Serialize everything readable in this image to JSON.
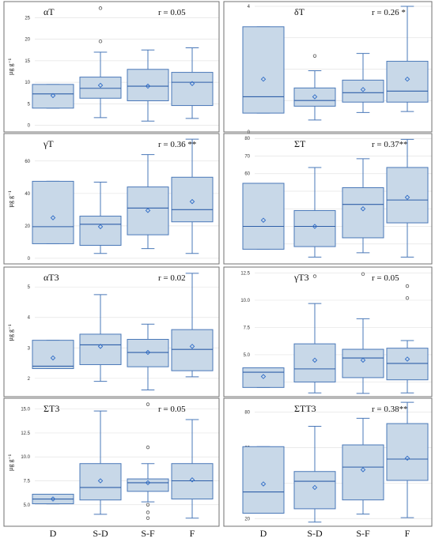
{
  "categories": [
    "D",
    "S-D",
    "S-F",
    "F"
  ],
  "y_unit_label": "µg g⁻¹",
  "colors": {
    "box_fill": "#c8d8e8",
    "box_stroke": "#4a78b8",
    "median": "#2f5fa8",
    "mean_marker": "#2e6bc6",
    "grid": "#e4e4e4",
    "frame": "#707070",
    "outlier": "#555555"
  },
  "chart_data": [
    {
      "type": "box",
      "title": "αT",
      "annotation": "r = 0.05",
      "ylabel": "µg g⁻¹",
      "ylim": [
        -0.8,
        28
      ],
      "yticks": [
        0,
        5,
        10,
        15,
        20,
        25
      ],
      "series": [
        {
          "category": "D",
          "whisker_low": 4.0,
          "q1": 4.0,
          "median": 7.3,
          "q3": 9.5,
          "whisker_high": 9.5,
          "mean": 6.9,
          "outliers": []
        },
        {
          "category": "S-D",
          "whisker_low": 1.8,
          "q1": 6.3,
          "median": 8.6,
          "q3": 11.2,
          "whisker_high": 17.0,
          "mean": 9.3,
          "outliers": [
            19.5,
            27.2
          ]
        },
        {
          "category": "S-F",
          "whisker_low": 1.0,
          "q1": 5.7,
          "median": 9.1,
          "q3": 13.0,
          "whisker_high": 17.5,
          "mean": 9.1,
          "outliers": []
        },
        {
          "category": "F",
          "whisker_low": 1.6,
          "q1": 4.6,
          "median": 10.0,
          "q3": 12.3,
          "whisker_high": 18.0,
          "mean": 9.7,
          "outliers": []
        }
      ]
    },
    {
      "type": "box",
      "title": "δT",
      "annotation": "r = 0.26 *",
      "ylabel": "",
      "ylim": [
        0.1,
        4.05
      ],
      "yticks": [
        0,
        1,
        2,
        3,
        4
      ],
      "series": [
        {
          "category": "D",
          "whisker_low": 0.6,
          "q1": 0.6,
          "median": 1.12,
          "q3": 3.35,
          "whisker_high": 3.35,
          "mean": 1.68,
          "outliers": []
        },
        {
          "category": "S-D",
          "whisker_low": 0.38,
          "q1": 0.82,
          "median": 1.0,
          "q3": 1.4,
          "whisker_high": 1.95,
          "mean": 1.12,
          "outliers": [
            2.42
          ]
        },
        {
          "category": "S-F",
          "whisker_low": 0.62,
          "q1": 0.95,
          "median": 1.25,
          "q3": 1.65,
          "whisker_high": 2.5,
          "mean": 1.35,
          "outliers": []
        },
        {
          "category": "F",
          "whisker_low": 0.65,
          "q1": 0.95,
          "median": 1.3,
          "q3": 2.25,
          "whisker_high": 4.0,
          "mean": 1.68,
          "outliers": []
        }
      ]
    },
    {
      "type": "box",
      "title": "γT",
      "annotation": "r = 0.36 **",
      "ylabel": "µg g⁻¹",
      "ylim": [
        -2,
        75
      ],
      "yticks": [
        0,
        20,
        40,
        60
      ],
      "series": [
        {
          "category": "D",
          "whisker_low": 9.0,
          "q1": 9.0,
          "median": 19.5,
          "q3": 47.5,
          "whisker_high": 47.5,
          "mean": 25.0,
          "outliers": []
        },
        {
          "category": "S-D",
          "whisker_low": 3.0,
          "q1": 8.0,
          "median": 21.0,
          "q3": 26.0,
          "whisker_high": 47.0,
          "mean": 19.5,
          "outliers": []
        },
        {
          "category": "S-F",
          "whisker_low": 6.0,
          "q1": 14.5,
          "median": 31.0,
          "q3": 44.0,
          "whisker_high": 64.0,
          "mean": 29.5,
          "outliers": []
        },
        {
          "category": "F",
          "whisker_low": 3.0,
          "q1": 22.5,
          "median": 30.0,
          "q3": 50.0,
          "whisker_high": 73.5,
          "mean": 35.0,
          "outliers": []
        }
      ]
    },
    {
      "type": "box",
      "title": "ΣT",
      "annotation": "r = 0.37**",
      "ylabel": "",
      "ylim": [
        10,
        81
      ],
      "yticks": [
        20,
        30,
        40,
        50,
        60,
        70,
        80
      ],
      "series": [
        {
          "category": "D",
          "whisker_low": 17.0,
          "q1": 17.0,
          "median": 30.0,
          "q3": 54.5,
          "whisker_high": 54.5,
          "mean": 33.5,
          "outliers": []
        },
        {
          "category": "S-D",
          "whisker_low": 12.5,
          "q1": 18.5,
          "median": 30.0,
          "q3": 39.0,
          "whisker_high": 63.5,
          "mean": 30.0,
          "outliers": []
        },
        {
          "category": "S-F",
          "whisker_low": 15.0,
          "q1": 23.5,
          "median": 42.5,
          "q3": 52.0,
          "whisker_high": 68.5,
          "mean": 40.0,
          "outliers": []
        },
        {
          "category": "F",
          "whisker_low": 12.5,
          "q1": 32.0,
          "median": 45.0,
          "q3": 63.5,
          "whisker_high": 79.5,
          "mean": 46.5,
          "outliers": []
        }
      ]
    },
    {
      "type": "box",
      "title": "αT3",
      "annotation": "r = 0.02",
      "ylabel": "µg g⁻¹",
      "ylim": [
        1.45,
        5.55
      ],
      "yticks": [
        2,
        3,
        4,
        5
      ],
      "series": [
        {
          "category": "D",
          "whisker_low": 2.32,
          "q1": 2.32,
          "median": 2.4,
          "q3": 3.25,
          "whisker_high": 3.25,
          "mean": 2.67,
          "outliers": []
        },
        {
          "category": "S-D",
          "whisker_low": 1.9,
          "q1": 2.45,
          "median": 3.1,
          "q3": 3.45,
          "whisker_high": 4.75,
          "mean": 3.05,
          "outliers": []
        },
        {
          "category": "S-F",
          "whisker_low": 1.62,
          "q1": 2.38,
          "median": 2.85,
          "q3": 3.28,
          "whisker_high": 3.78,
          "mean": 2.85,
          "outliers": []
        },
        {
          "category": "F",
          "whisker_low": 2.05,
          "q1": 2.25,
          "median": 2.95,
          "q3": 3.6,
          "whisker_high": 5.45,
          "mean": 3.05,
          "outliers": []
        }
      ]
    },
    {
      "type": "box",
      "title": "γT3",
      "annotation": "r = 0.05",
      "ylabel": "",
      "ylim": [
        1.3,
        12.75
      ],
      "yticks": [
        2.5,
        5.0,
        7.5,
        10.0,
        12.5
      ],
      "tick_labels": [
        "2.5",
        "5.0",
        "7.5",
        "10.0",
        "12.5"
      ],
      "series": [
        {
          "category": "D",
          "whisker_low": 2.0,
          "q1": 2.0,
          "median": 3.4,
          "q3": 3.8,
          "whisker_high": 3.8,
          "mean": 3.0,
          "outliers": []
        },
        {
          "category": "S-D",
          "whisker_low": 1.5,
          "q1": 2.5,
          "median": 3.7,
          "q3": 6.0,
          "whisker_high": 9.7,
          "mean": 4.5,
          "outliers": [
            12.2
          ]
        },
        {
          "category": "S-F",
          "whisker_low": 1.45,
          "q1": 2.9,
          "median": 4.7,
          "q3": 5.5,
          "whisker_high": 8.3,
          "mean": 4.5,
          "outliers": [
            12.4
          ]
        },
        {
          "category": "F",
          "whisker_low": 1.5,
          "q1": 2.7,
          "median": 4.2,
          "q3": 5.6,
          "whisker_high": 6.3,
          "mean": 4.6,
          "outliers": [
            10.2,
            11.3
          ]
        }
      ]
    },
    {
      "type": "box",
      "title": "ΣT3",
      "annotation": "r = 0.05",
      "ylabel": "µg g⁻¹",
      "ylim": [
        3.0,
        15.8
      ],
      "yticks": [
        5.0,
        7.5,
        10.0,
        12.5,
        15.0
      ],
      "tick_labels": [
        "5.0",
        "7.5",
        "10.0",
        "12.5",
        "15.0"
      ],
      "series": [
        {
          "category": "D",
          "whisker_low": 5.1,
          "q1": 5.1,
          "median": 5.6,
          "q3": 6.1,
          "whisker_high": 6.1,
          "mean": 5.6,
          "outliers": []
        },
        {
          "category": "S-D",
          "whisker_low": 4.0,
          "q1": 5.5,
          "median": 6.8,
          "q3": 9.3,
          "whisker_high": 14.8,
          "mean": 7.5,
          "outliers": []
        },
        {
          "category": "S-F",
          "whisker_low": 5.3,
          "q1": 6.4,
          "median": 7.3,
          "q3": 7.7,
          "whisker_high": 9.3,
          "mean": 7.3,
          "outliers": [
            15.5,
            11.0,
            5.0,
            4.2,
            3.6
          ]
        },
        {
          "category": "F",
          "whisker_low": 3.6,
          "q1": 5.6,
          "median": 7.5,
          "q3": 9.3,
          "whisker_high": 13.9,
          "mean": 7.6,
          "outliers": []
        }
      ]
    },
    {
      "type": "box",
      "title": "ΣTT3",
      "annotation": "r = 0.38**",
      "ylabel": "",
      "ylim": [
        17,
        86
      ],
      "yticks": [
        20,
        40,
        60,
        80
      ],
      "series": [
        {
          "category": "D",
          "whisker_low": 23.0,
          "q1": 23.0,
          "median": 35.0,
          "q3": 60.5,
          "whisker_high": 60.5,
          "mean": 39.5,
          "outliers": []
        },
        {
          "category": "S-D",
          "whisker_low": 18.0,
          "q1": 25.5,
          "median": 41.0,
          "q3": 46.5,
          "whisker_high": 72.0,
          "mean": 37.5,
          "outliers": []
        },
        {
          "category": "S-F",
          "whisker_low": 22.5,
          "q1": 30.5,
          "median": 49.0,
          "q3": 61.5,
          "whisker_high": 76.5,
          "mean": 47.5,
          "outliers": []
        },
        {
          "category": "F",
          "whisker_low": 20.5,
          "q1": 41.5,
          "median": 53.5,
          "q3": 73.5,
          "whisker_high": 85.5,
          "mean": 54.0,
          "outliers": []
        }
      ]
    }
  ]
}
